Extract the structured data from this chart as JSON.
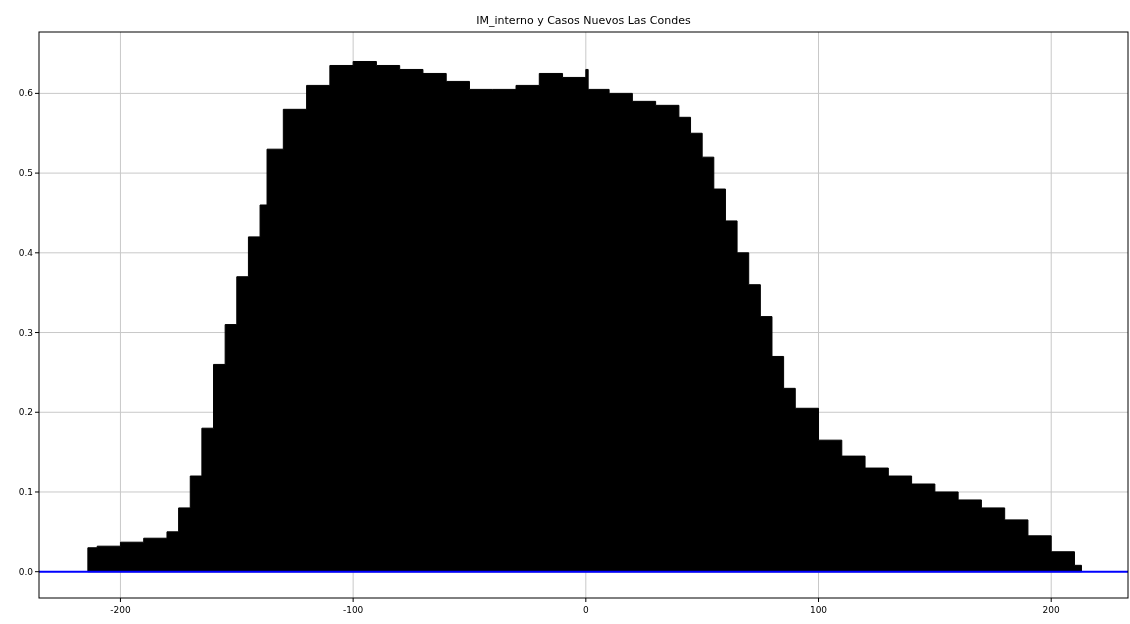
{
  "chart_data": {
    "type": "area",
    "title": "IM_interno y Casos Nuevos Las Condes",
    "x": [
      -214,
      -210,
      -200,
      -190,
      -180,
      -175,
      -170,
      -165,
      -160,
      -155,
      -150,
      -145,
      -140,
      -137,
      -130,
      -120,
      -110,
      -100,
      -90,
      -80,
      -70,
      -60,
      -50,
      -40,
      -30,
      -20,
      -10,
      0,
      1,
      10,
      20,
      30,
      40,
      45,
      50,
      55,
      60,
      65,
      70,
      75,
      80,
      85,
      90,
      100,
      110,
      120,
      130,
      140,
      150,
      160,
      170,
      180,
      190,
      200,
      210,
      213
    ],
    "series": [
      {
        "color": "#000000",
        "values": [
          0.03,
          0.032,
          0.037,
          0.042,
          0.05,
          0.08,
          0.12,
          0.18,
          0.26,
          0.31,
          0.37,
          0.42,
          0.46,
          0.53,
          0.58,
          0.61,
          0.635,
          0.64,
          0.635,
          0.63,
          0.625,
          0.615,
          0.605,
          0.605,
          0.61,
          0.625,
          0.62,
          0.63,
          0.605,
          0.6,
          0.59,
          0.585,
          0.57,
          0.55,
          0.52,
          0.48,
          0.44,
          0.4,
          0.36,
          0.32,
          0.27,
          0.23,
          0.205,
          0.165,
          0.145,
          0.13,
          0.12,
          0.11,
          0.1,
          0.09,
          0.08,
          0.065,
          0.045,
          0.025,
          0.008,
          0.0
        ]
      }
    ],
    "xlim": [
      -235,
      233
    ],
    "xticks": [
      -200,
      -100,
      0,
      100,
      200
    ],
    "ylim": [
      -0.033,
      0.677
    ],
    "yticks": [
      {
        "value": 0,
        "label": "0.0"
      },
      {
        "value": 0.1,
        "label": "0.1"
      },
      {
        "value": 0.2,
        "label": "0.2"
      },
      {
        "value": 0.3,
        "label": "0.3"
      },
      {
        "value": 0.4,
        "label": "0.4"
      },
      {
        "value": 0.5,
        "label": "0.5"
      },
      {
        "value": 0.6,
        "label": "0.6"
      }
    ],
    "grid": true,
    "ref_lines": [
      {
        "axis": "y",
        "value": 0,
        "color": "#0000ff"
      }
    ]
  }
}
